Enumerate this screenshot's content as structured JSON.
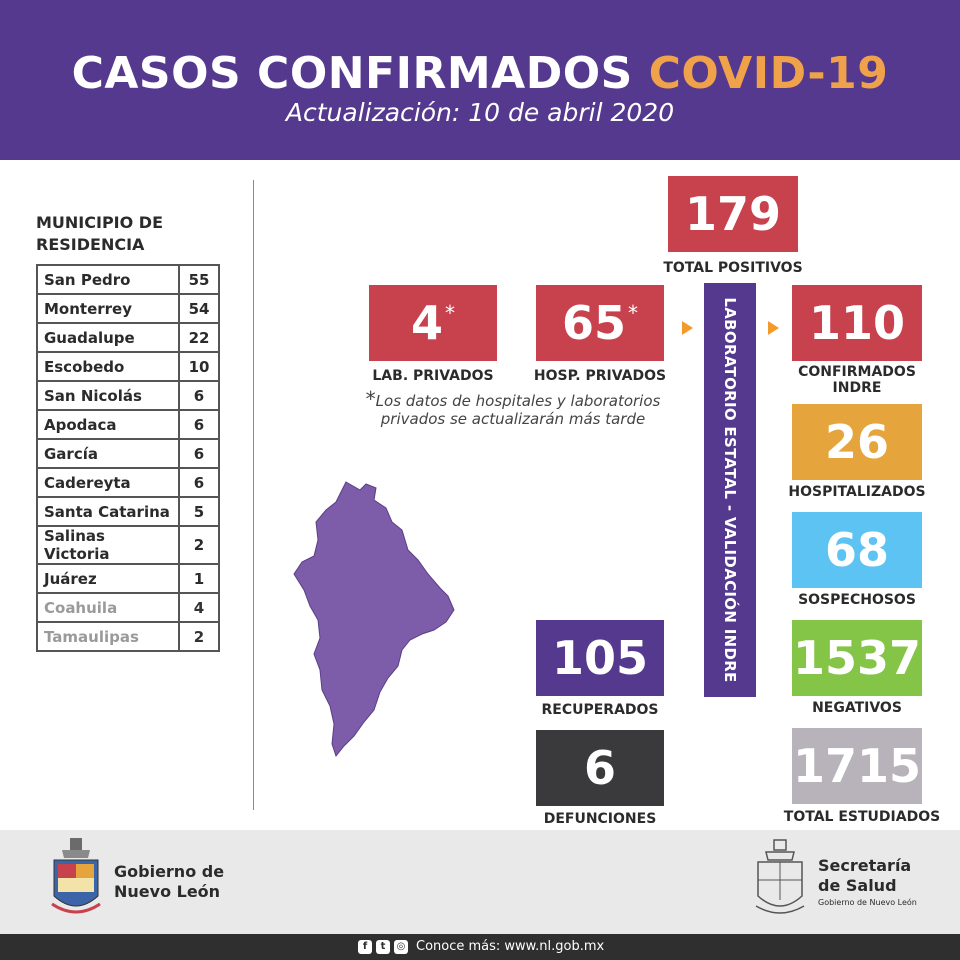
{
  "header": {
    "title_main": "CASOS CONFIRMADOS",
    "title_accent": "COVID-19",
    "subtitle": "Actualización: 10 de abril 2020"
  },
  "municipios": {
    "heading_line1": "MUNICIPIO DE",
    "heading_line2": "RESIDENCIA",
    "rows": [
      {
        "name": "San Pedro",
        "value": "55"
      },
      {
        "name": "Monterrey",
        "value": "54"
      },
      {
        "name": "Guadalupe",
        "value": "22"
      },
      {
        "name": "Escobedo",
        "value": "10"
      },
      {
        "name": "San Nicolás",
        "value": "6"
      },
      {
        "name": "Apodaca",
        "value": "6"
      },
      {
        "name": "García",
        "value": "6"
      },
      {
        "name": "Cadereyta",
        "value": "6"
      },
      {
        "name": "Santa Catarina",
        "value": "5"
      },
      {
        "name": "Salinas Victoria",
        "value": "2"
      },
      {
        "name": "Juárez",
        "value": "1"
      },
      {
        "name": "Coahuila",
        "value": "4"
      },
      {
        "name": "Tamaulipas",
        "value": "2"
      }
    ]
  },
  "stats": {
    "total_positivos": {
      "value": "179",
      "label": "TOTAL POSITIVOS"
    },
    "lab_privados": {
      "value": "4",
      "label": "LAB. PRIVADOS"
    },
    "hosp_privados": {
      "value": "65",
      "label": "HOSP. PRIVADOS"
    },
    "confirmados_indre": {
      "value": "110",
      "label_line1": "CONFIRMADOS",
      "label_line2": "INDRE"
    },
    "hospitalizados": {
      "value": "26",
      "label": "HOSPITALIZADOS"
    },
    "sospechosos": {
      "value": "68",
      "label": "SOSPECHOSOS"
    },
    "negativos": {
      "value": "1537",
      "label": "NEGATIVOS"
    },
    "total_estudiados": {
      "value": "1715",
      "label": "TOTAL ESTUDIADOS"
    },
    "recuperados": {
      "value": "105",
      "label": "RECUPERADOS"
    },
    "defunciones": {
      "value": "6",
      "label": "DEFUNCIONES"
    }
  },
  "star_mark": "*",
  "note": {
    "line1": "Los datos de hospitales y laboratorios",
    "line2": "privados se actualizarán más tarde"
  },
  "lab_bar_text": "LABORATORIO ESTATAL - VALIDACIÓN INDRE",
  "footer": {
    "gob_line1": "Gobierno de",
    "gob_line2": "Nuevo León",
    "sec_line1": "Secretaría",
    "sec_line2": "de Salud",
    "sec_small": "Gobierno de Nuevo León",
    "cta": "Conoce más: www.nl.gob.mx"
  },
  "icons": {
    "map": "nuevo-leon-map-icon",
    "logo_left": "gobierno-nuevo-leon-crest-icon",
    "logo_right": "secretaria-salud-crest-icon",
    "facebook": "facebook-icon",
    "twitter": "twitter-icon",
    "instagram": "instagram-icon"
  },
  "colors": {
    "header": "#54398f",
    "accent": "#f0a24a",
    "red": "#c8424e",
    "orange": "#e6a53c",
    "light_blue": "#5cc3f2",
    "green": "#84c447",
    "gray": "#b8b3bb",
    "dark": "#3a3a3c",
    "purple": "#54398f",
    "map": "#7d5caa"
  }
}
